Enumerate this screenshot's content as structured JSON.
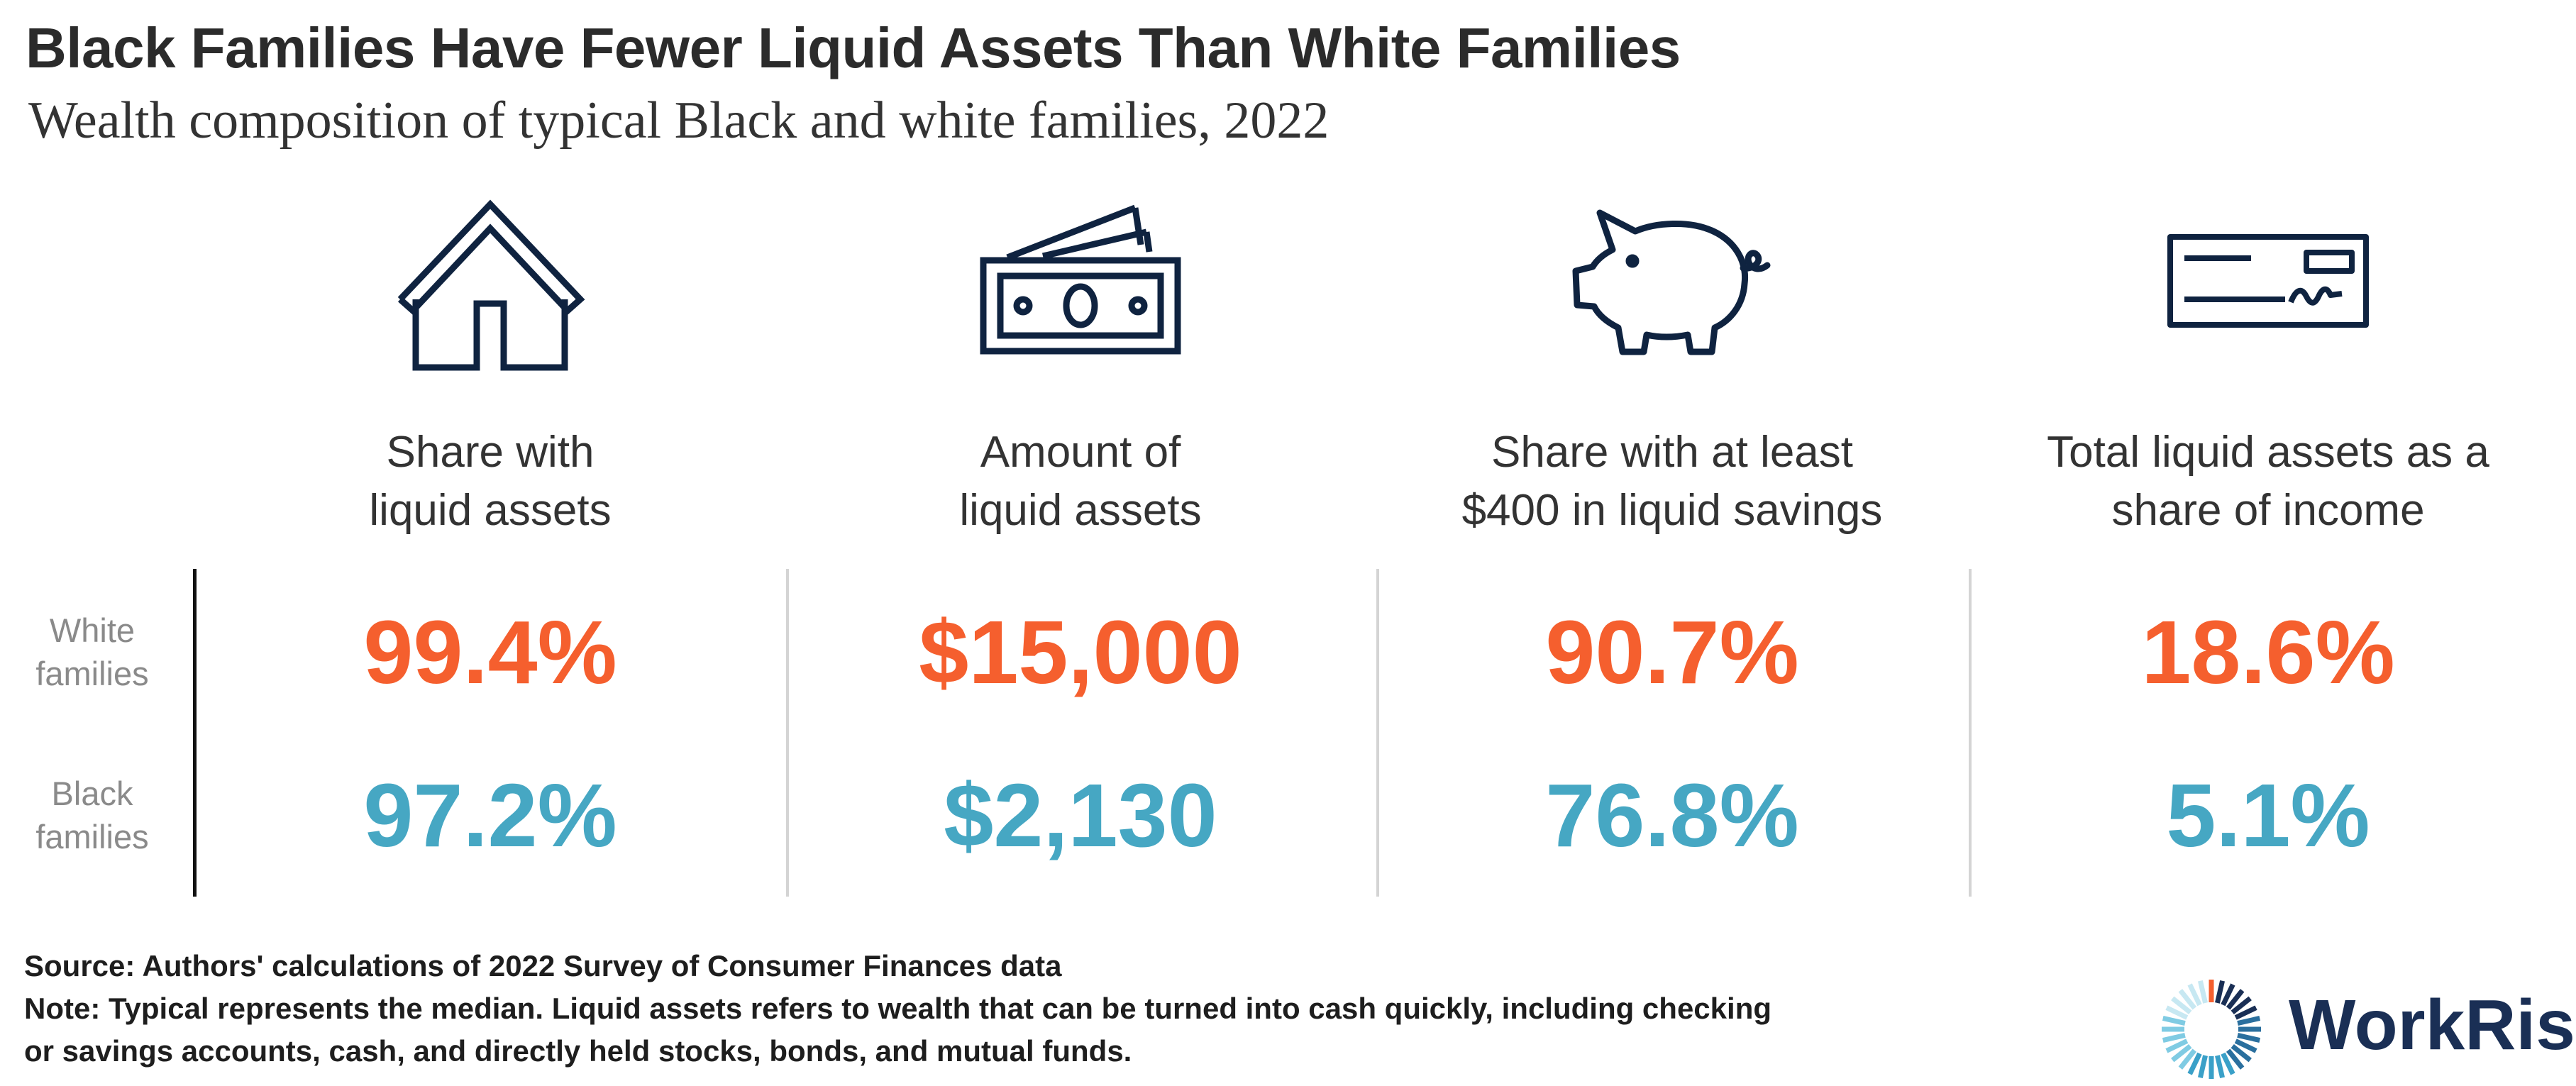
{
  "chart_data": {
    "type": "table",
    "title": "Black Families Have Fewer Liquid Assets Than White Families",
    "subtitle": "Wealth composition of typical Black and white families, 2022",
    "row_labels": [
      [
        "White",
        "families"
      ],
      [
        "Black",
        "families"
      ]
    ],
    "columns": [
      {
        "icon": "house-icon",
        "header": [
          "Share with",
          "liquid assets"
        ],
        "white": "99.4%",
        "black": "97.2%"
      },
      {
        "icon": "cash-icon",
        "header": [
          "Amount of",
          "liquid assets"
        ],
        "white": "$15,000",
        "black": "$2,130"
      },
      {
        "icon": "piggy-bank-icon",
        "header": [
          "Share with at least",
          "$400 in liquid savings"
        ],
        "white": "90.7%",
        "black": "76.8%"
      },
      {
        "icon": "check-icon",
        "header": [
          "Total liquid assets as a",
          "share of income"
        ],
        "white": "18.6%",
        "black": "5.1%"
      }
    ],
    "colors": {
      "white_families": "#f55f2e",
      "black_families": "#46a7c3",
      "icon": "#0f2340"
    }
  },
  "footer": {
    "source_label": "Source:",
    "source_text": " Authors' calculations of 2022 Survey of Consumer Finances data",
    "note_label": "Note:",
    "note_text_1": " Typical represents the median. Liquid assets refers to wealth that can be turned into cash quickly, including checking",
    "note_text_2": "or savings accounts, cash, and directly held stocks, bonds, and mutual funds."
  },
  "logo": {
    "text": "WorkRise",
    "color": "#1a2f55"
  }
}
